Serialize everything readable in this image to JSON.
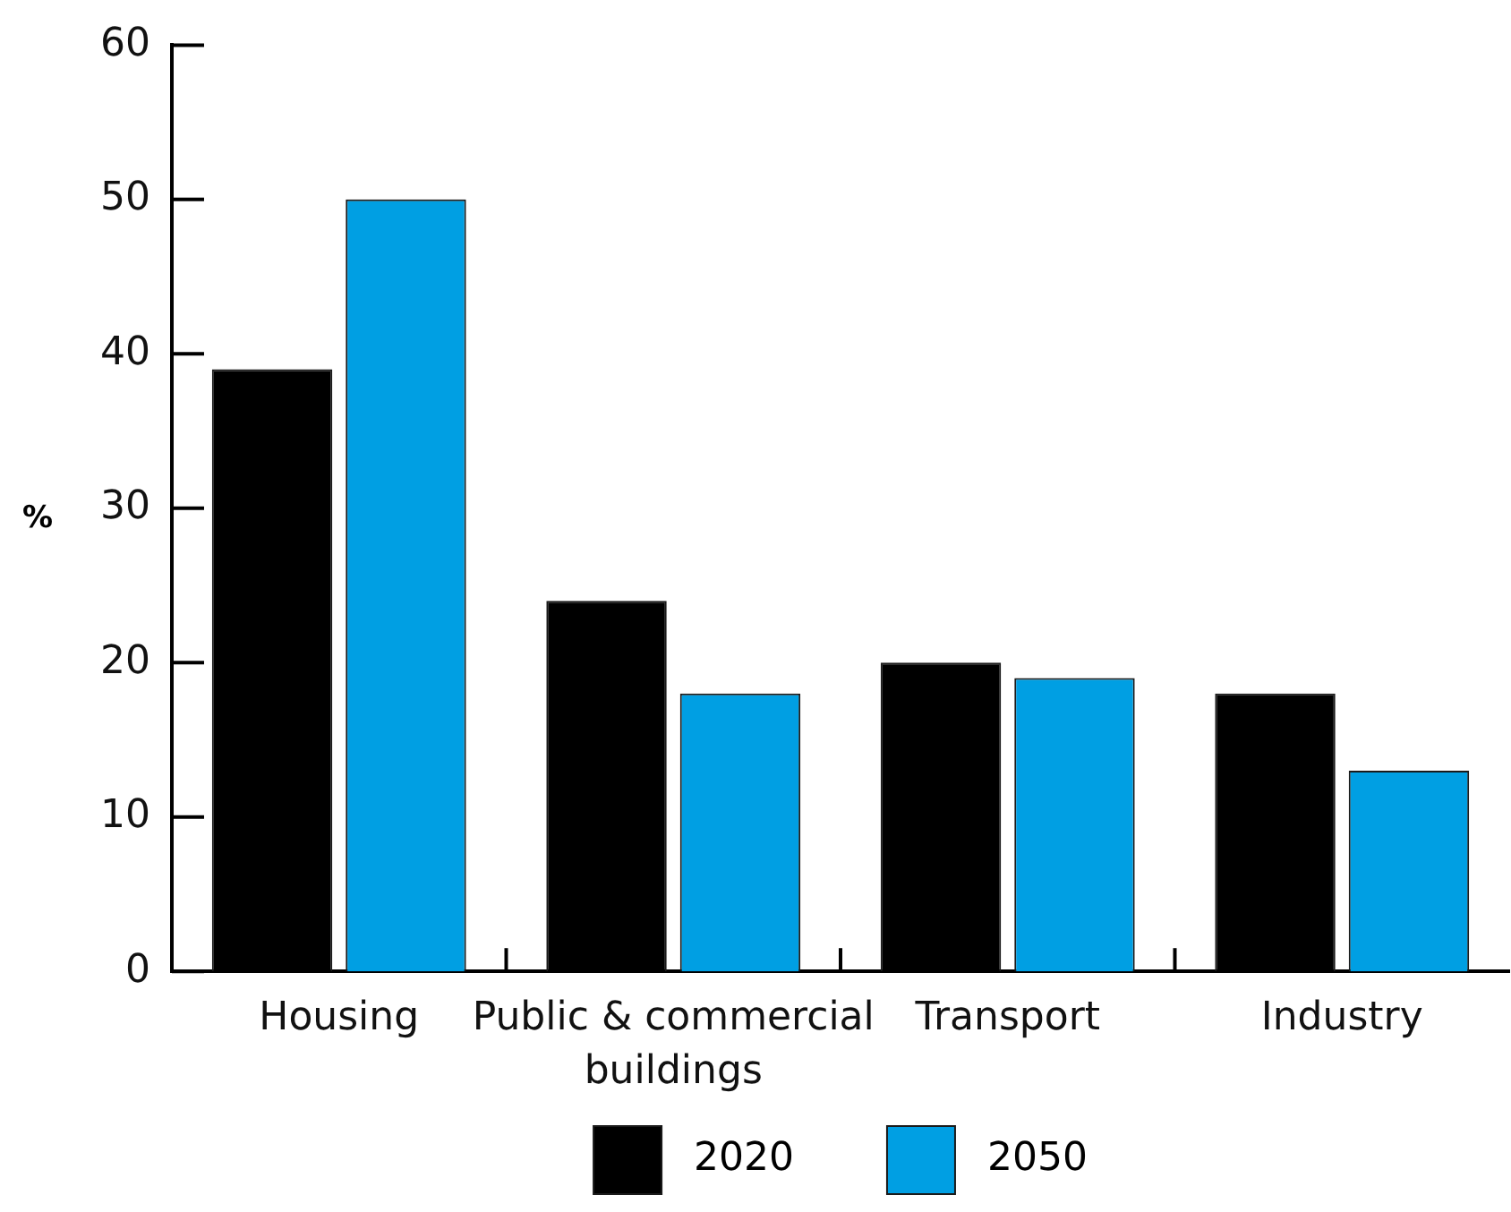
{
  "chart_data": {
    "type": "bar",
    "ylabel": "%",
    "categories": [
      "Housing",
      "Public & commercial buildings",
      "Transport",
      "Industry"
    ],
    "series": [
      {
        "name": "2020",
        "color": "#000000",
        "values": [
          39,
          24,
          20,
          18
        ]
      },
      {
        "name": "2050",
        "color": "#009fe3",
        "values": [
          50,
          18,
          19,
          13
        ]
      }
    ],
    "ylim": [
      0,
      60
    ],
    "yticks": [
      0,
      10,
      20,
      30,
      40,
      50,
      60
    ],
    "grid": false,
    "legend": "bottom"
  }
}
